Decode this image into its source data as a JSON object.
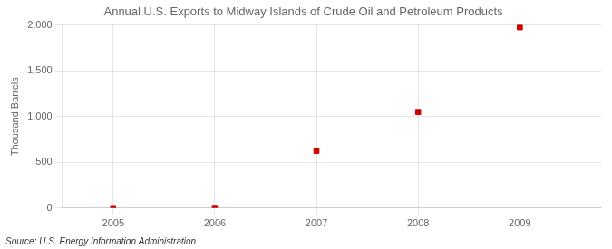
{
  "chart_data": {
    "type": "scatter",
    "title": "Annual U.S. Exports to Midway Islands of Crude Oil and Petroleum Products",
    "ylabel": "Thousand Barrels",
    "annotations": [
      "Source: U.S. Energy Information Administration"
    ],
    "x": [
      2005,
      2006,
      2007,
      2008,
      2009
    ],
    "values": [
      0,
      2,
      625,
      1050,
      1975
    ],
    "color": "#cc0000",
    "marker": "square",
    "xlim": [
      2004.5,
      2009.8
    ],
    "xticks": [
      2005,
      2006,
      2007,
      2008,
      2009
    ],
    "ylim": [
      0,
      2000
    ],
    "yticks": [
      0,
      500,
      {
        "value": 1000,
        "label": "1,000"
      },
      {
        "value": 1500,
        "label": "1,500"
      },
      {
        "value": 2000,
        "label": "2,000"
      }
    ],
    "grid": true
  }
}
